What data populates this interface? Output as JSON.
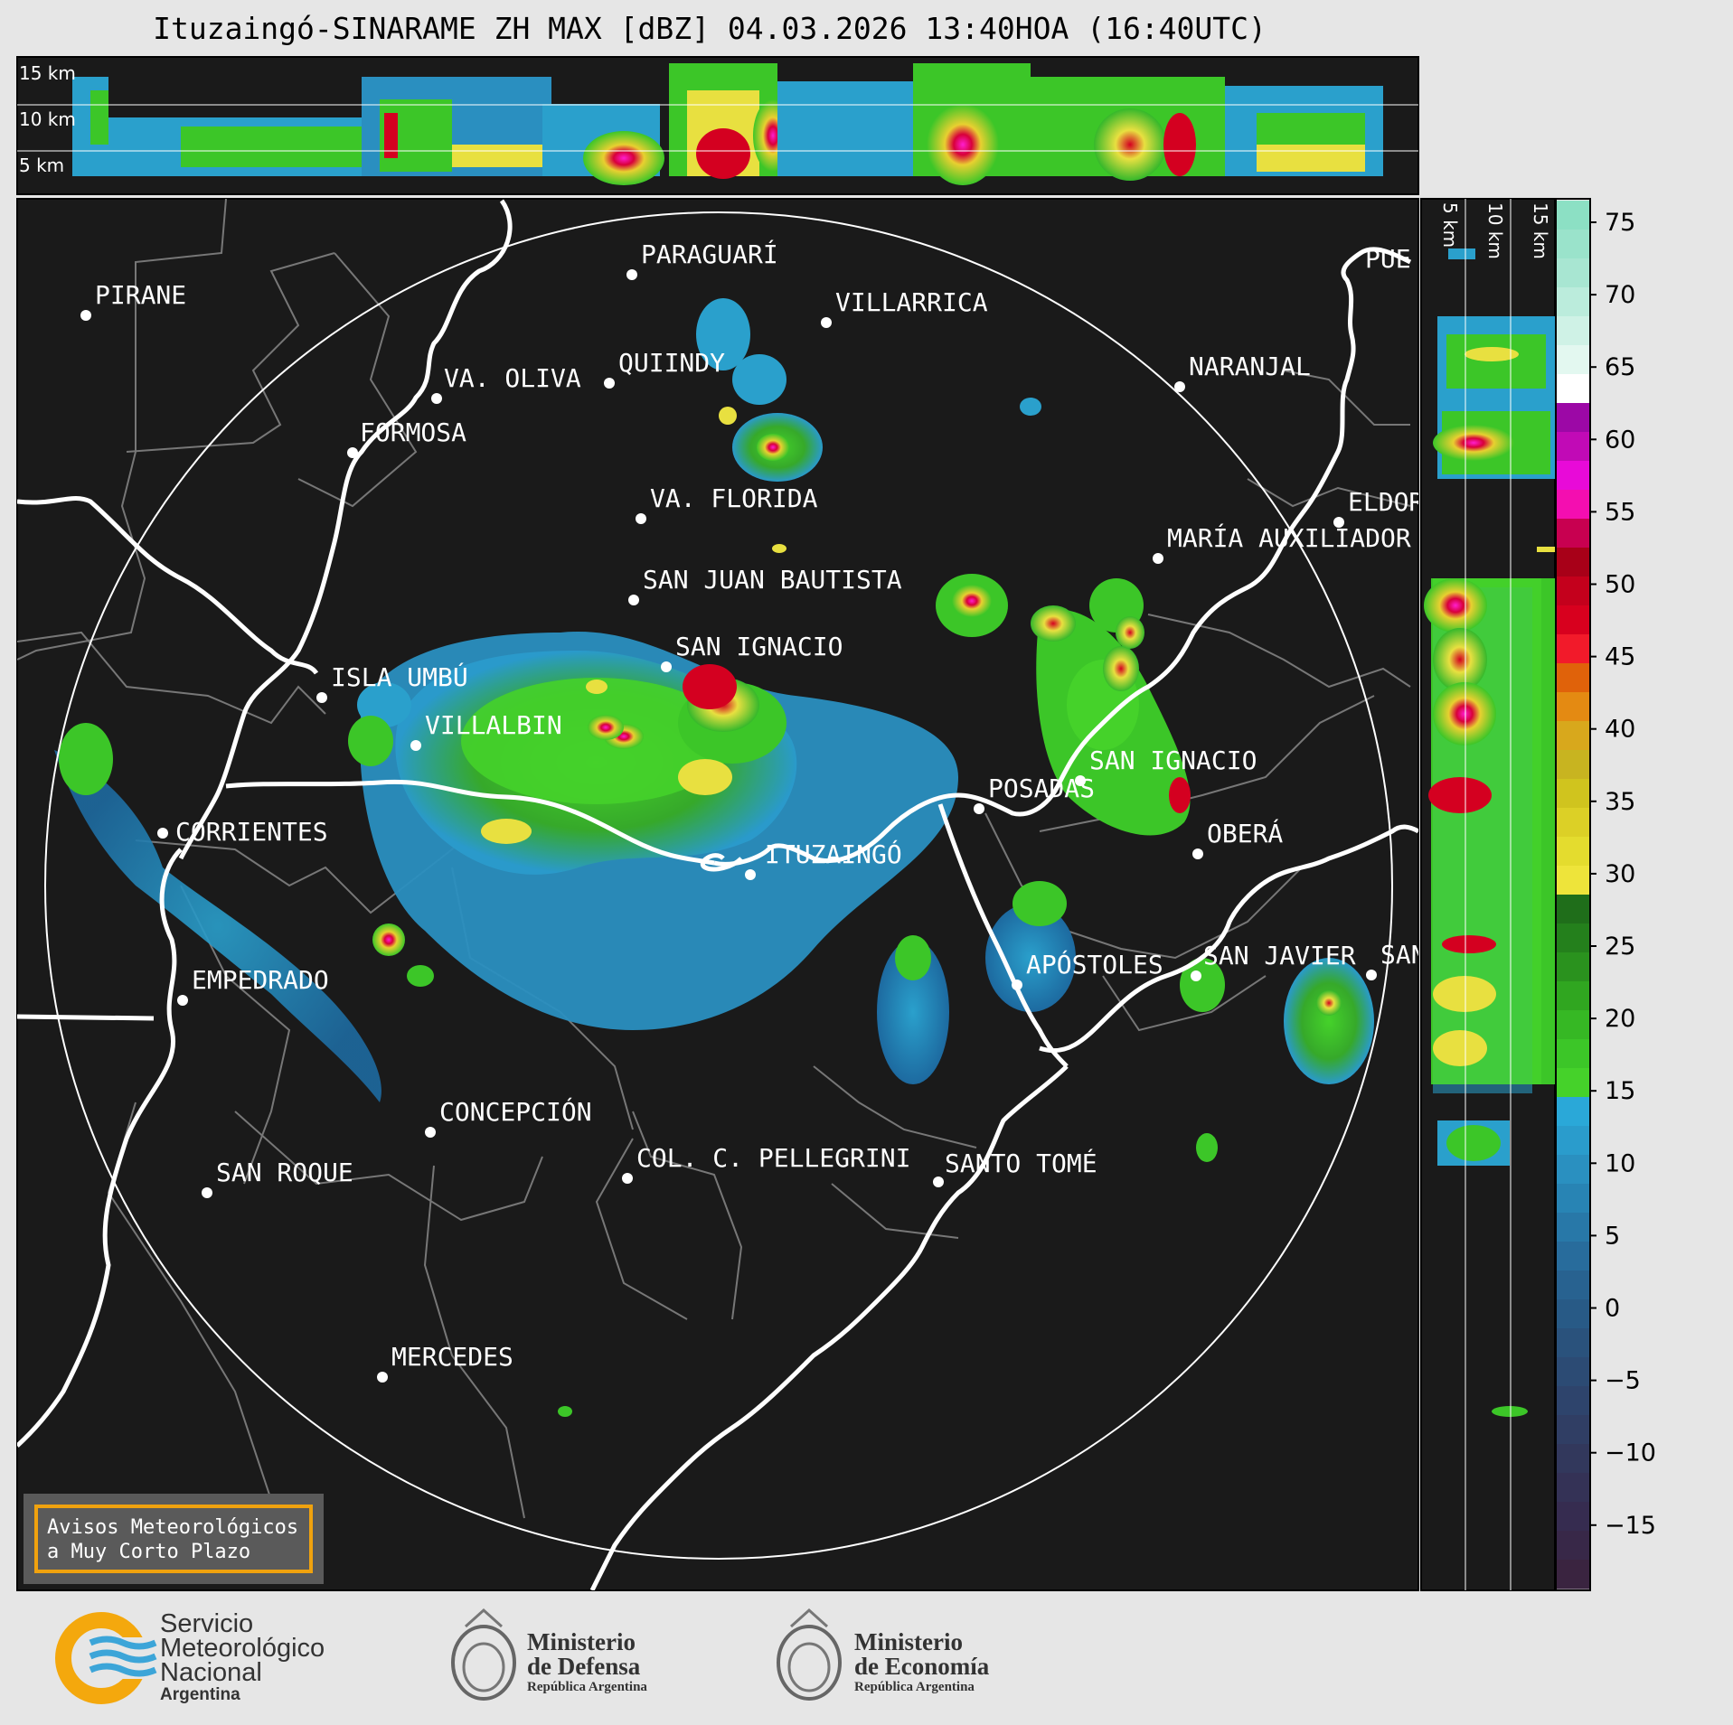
{
  "title": "Ituzaingó-SINARAME ZH MAX [dBZ] 04.03.2026 13:40HOA (16:40UTC)",
  "cross_section_top": {
    "labels": [
      "15 km",
      "10 km",
      "5 km"
    ]
  },
  "cross_section_right": {
    "labels": [
      "5 km",
      "10 km",
      "15 km"
    ]
  },
  "colorbar": {
    "ticks": [
      "75",
      "70",
      "65",
      "60",
      "55",
      "50",
      "45",
      "40",
      "35",
      "30",
      "25",
      "20",
      "15",
      "10",
      "5",
      "0",
      "−5",
      "−10",
      "−15"
    ]
  },
  "places": [
    "PIRANE",
    "PARAGUARÍ",
    "VILLARRICA",
    "QUIINDY",
    "VA. OLIVA",
    "NARANJAL",
    "FORMOSA",
    "VA. FLORIDA",
    "ELDOR",
    "MARÍA AUXILIADOR",
    "SAN JUAN BAUTISTA",
    "SAN IGNACIO",
    "ISLA UMBÚ",
    "VILLALBIN",
    "SAN IGNACIO",
    "CORRIENTES",
    "POSADAS",
    "ITUZAINGÓ",
    "OBERÁ",
    "APÓSTOLES",
    "SAN JAVIER",
    "SAN",
    "EMPEDRADO",
    "CONCEPCIÓN",
    "SAN ROQUE",
    "COL. C. PELLEGRINI",
    "SANTO TOMÉ",
    "MERCEDES",
    "PUE"
  ],
  "avisos": {
    "line1": "Avisos Meteorológicos",
    "line2": "a Muy Corto Plazo"
  },
  "logos": {
    "smn": {
      "line1": "Servicio",
      "line2": "Meteorológico",
      "line3": "Nacional",
      "line4": "Argentina"
    },
    "defensa": {
      "line1": "Ministerio",
      "line2": "de Defensa",
      "line3": "República Argentina"
    },
    "economia": {
      "line1": "Ministerio",
      "line2": "de Economía",
      "line3": "República Argentina"
    }
  },
  "colors": {
    "background": "#1a1a1a",
    "range_ring": "#ffffff",
    "outer": "#e6e6e6"
  }
}
